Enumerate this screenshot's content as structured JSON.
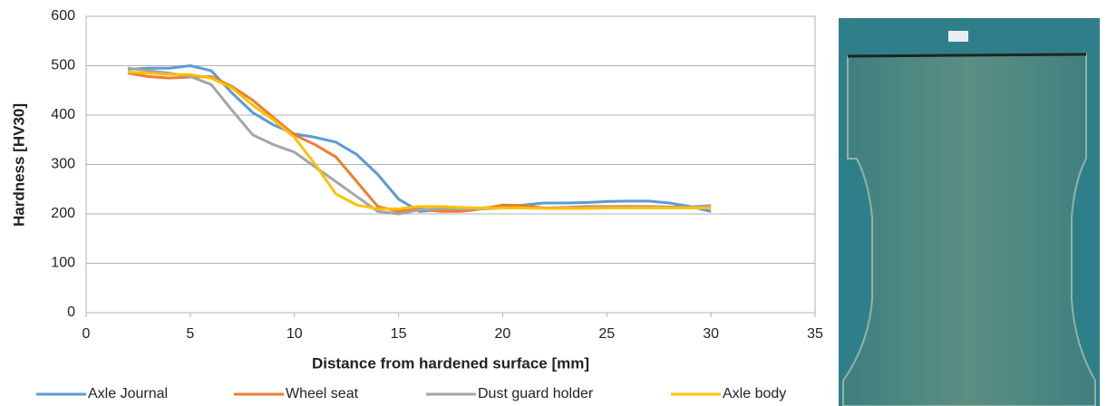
{
  "chart_data": {
    "type": "line",
    "x_label": "Distance from hardened surface [mm]",
    "y_label": "Hardness  [HV30]",
    "x": [
      2,
      3,
      4,
      5,
      6,
      7,
      8,
      9,
      10,
      11,
      12,
      13,
      14,
      15,
      16,
      17,
      18,
      19,
      20,
      21,
      22,
      23,
      24,
      25,
      26,
      27,
      28,
      29,
      30
    ],
    "series": [
      {
        "name": "Axle Journal",
        "color": "#5b9bd5",
        "values": [
          493,
          495,
          495,
          500,
          490,
          445,
          405,
          380,
          362,
          355,
          345,
          320,
          280,
          230,
          205,
          208,
          210,
          212,
          215,
          218,
          222,
          222,
          223,
          225,
          226,
          226,
          222,
          215,
          205
        ]
      },
      {
        "name": "Wheel seat",
        "color": "#ed7d31",
        "values": [
          485,
          478,
          475,
          477,
          478,
          458,
          430,
          395,
          360,
          340,
          315,
          265,
          215,
          205,
          210,
          205,
          205,
          210,
          218,
          217,
          212,
          213,
          215,
          215,
          215,
          215,
          214,
          214,
          215
        ]
      },
      {
        "name": "Dust guard holder",
        "color": "#a5a5a5",
        "values": [
          495,
          490,
          485,
          478,
          462,
          410,
          360,
          340,
          325,
          295,
          265,
          235,
          205,
          200,
          208,
          210,
          210,
          210,
          212,
          212,
          212,
          212,
          213,
          213,
          213,
          213,
          213,
          214,
          217
        ]
      },
      {
        "name": "Axle body",
        "color": "#ffc000",
        "values": [
          487,
          485,
          482,
          482,
          475,
          455,
          420,
          390,
          355,
          300,
          240,
          218,
          210,
          210,
          215,
          215,
          213,
          212,
          212,
          212,
          211,
          211,
          211,
          212,
          212,
          212,
          212,
          212,
          212
        ]
      }
    ],
    "xlim": [
      0,
      35
    ],
    "xticks": [
      0,
      5,
      10,
      15,
      20,
      25,
      30,
      35
    ],
    "ylim": [
      0,
      600
    ],
    "yticks": [
      0,
      100,
      200,
      300,
      400,
      500,
      600
    ],
    "grid": true,
    "legend": "bottom"
  }
}
